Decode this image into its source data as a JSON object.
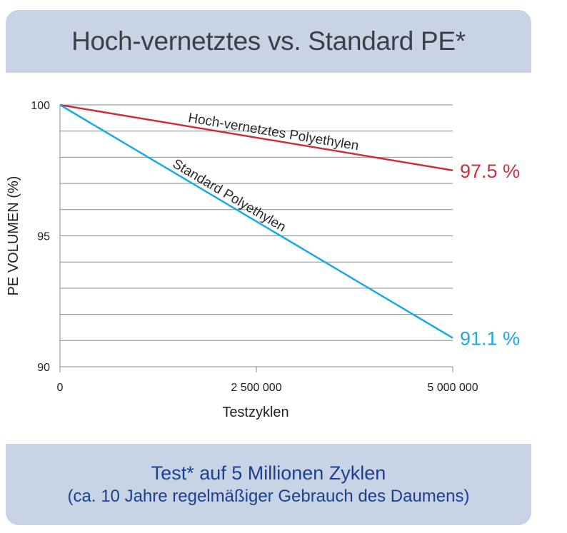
{
  "header": {
    "title": "Hoch-vernetztes vs. Standard PE*"
  },
  "footer": {
    "line1": "Test* auf 5 Millionen Zyklen",
    "line2": "(ca. 10 Jahre regelmäßiger Gebrauch des Daumens)"
  },
  "colors": {
    "panel": "#c9d3e6",
    "red_series": "#c9303c",
    "blue_series": "#1aa8e6",
    "footer_text": "#1d3f8f"
  },
  "chart_data": {
    "type": "line",
    "xlabel": "Testzyklen",
    "ylabel": "PE VOLUMEN (%)",
    "xlim": [
      0,
      5000000
    ],
    "ylim": [
      90,
      100
    ],
    "x_ticks": [
      {
        "value": 0,
        "label": "0"
      },
      {
        "value": 2500000,
        "label": "2 500 000"
      },
      {
        "value": 5000000,
        "label": "5 000 000"
      }
    ],
    "y_ticks": [
      {
        "value": 90,
        "label": "90"
      },
      {
        "value": 95,
        "label": "95"
      },
      {
        "value": 100,
        "label": "100"
      }
    ],
    "grid": "horizontal, every 1 %",
    "series": [
      {
        "name": "Hoch-vernetztes Polyethylen",
        "x": [
          0,
          5000000
        ],
        "y": [
          100,
          97.5
        ],
        "end_label": "97.5 %",
        "color": "#c9303c"
      },
      {
        "name": "Standard Polyethylen",
        "x": [
          0,
          5000000
        ],
        "y": [
          100,
          91.1
        ],
        "end_label": "91.1 %",
        "color": "#1aa8e6"
      }
    ]
  }
}
